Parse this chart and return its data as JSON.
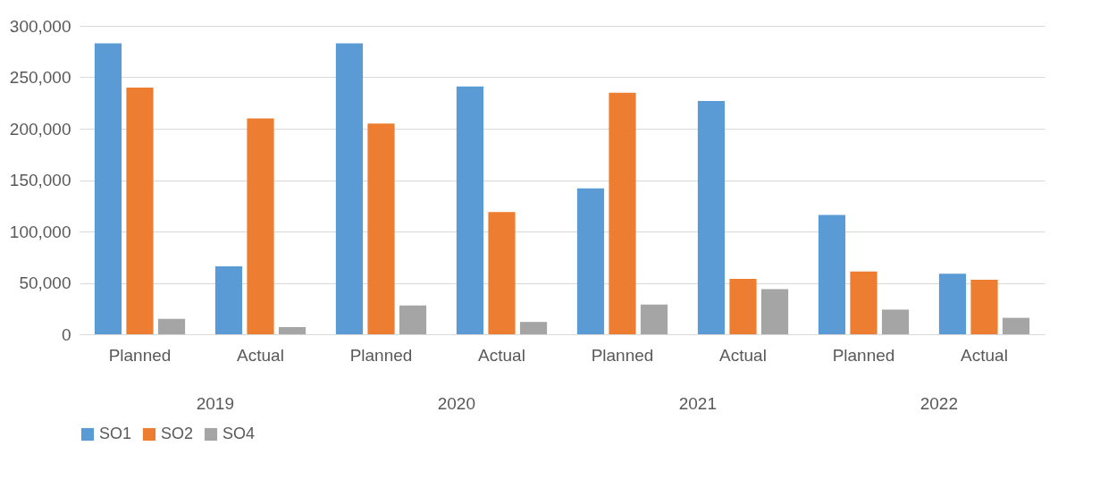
{
  "chart_data": {
    "type": "bar",
    "categories": [
      "Planned",
      "Actual",
      "Planned",
      "Actual",
      "Planned",
      "Actual",
      "Planned",
      "Actual"
    ],
    "series": [
      {
        "name": "SO1",
        "color": "#5b9bd5",
        "values": [
          283000,
          66000,
          283000,
          241000,
          142000,
          227000,
          116000,
          59000
        ]
      },
      {
        "name": "SO2",
        "color": "#ed7d31",
        "values": [
          240000,
          210000,
          205000,
          119000,
          235000,
          54000,
          61000,
          53000
        ]
      },
      {
        "name": "SO4",
        "color": "#a5a5a5",
        "values": [
          15000,
          7000,
          28000,
          12000,
          29000,
          44000,
          24000,
          16000
        ]
      }
    ],
    "annotations": [
      "2019",
      "2020",
      "2021",
      "2022"
    ],
    "ylim": [
      0,
      300000
    ],
    "yticks": [
      0,
      {
        "value": 50000,
        "label": "50,000"
      },
      {
        "value": 100000,
        "label": "100,000"
      },
      {
        "value": 150000,
        "label": "150,000"
      },
      {
        "value": 200000,
        "label": "200,000"
      },
      {
        "value": 250000,
        "label": "250,000"
      },
      {
        "value": 300000,
        "label": "300,000"
      }
    ],
    "grid": "y",
    "legend": "bottom"
  }
}
